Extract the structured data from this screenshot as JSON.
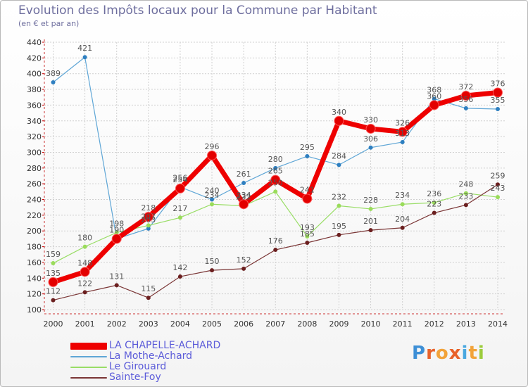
{
  "title": "Evolution des Impôts locaux pour la Commune par Habitant",
  "subtitle": "(en € et par an)",
  "logo": "Proxiti",
  "chart_data": {
    "type": "line",
    "title": "Evolution des Impôts locaux pour la Commune par Habitant",
    "ylabel": "(en € et par an)",
    "xlabel": "",
    "ylim": [
      100,
      440
    ],
    "yticks": [
      100,
      120,
      140,
      160,
      180,
      200,
      220,
      240,
      260,
      280,
      300,
      320,
      340,
      360,
      380,
      400,
      420,
      440
    ],
    "categories": [
      "2000",
      "2001",
      "2002",
      "2003",
      "2004",
      "2005",
      "2006",
      "2007",
      "2008",
      "2009",
      "2010",
      "2011",
      "2012",
      "2013",
      "2014"
    ],
    "grid": true,
    "legend_position": "bottom-left",
    "series": [
      {
        "name": "LA CHAPELLE-ACHARD",
        "color": "#ee0000",
        "width": 7,
        "values": [
          135,
          148,
          190,
          218,
          254,
          296,
          234,
          265,
          241,
          340,
          330,
          326,
          360,
          372,
          376
        ],
        "labels": [
          "135",
          "148",
          "190",
          "218",
          "254",
          "296",
          "234",
          "265",
          "241",
          "340",
          "330",
          "326",
          "360",
          "372",
          "376"
        ]
      },
      {
        "name": "La Mothe-Achard",
        "color": "#5fa6d6",
        "width": 1.2,
        "values": [
          389,
          421,
          190,
          203,
          256,
          240,
          261,
          280,
          295,
          284,
          306,
          313,
          368,
          356,
          355
        ],
        "labels": [
          "389",
          "421",
          "",
          "203",
          "256",
          "240",
          "261",
          "280",
          "295",
          "284",
          "306",
          "313",
          "368",
          "356",
          "355"
        ]
      },
      {
        "name": "Le Girouard",
        "color": "#99dd66",
        "width": 1.2,
        "values": [
          159,
          180,
          198,
          207,
          217,
          234,
          232,
          250,
          193,
          232,
          228,
          234,
          236,
          248,
          243
        ],
        "labels": [
          "159",
          "180",
          "198",
          "207",
          "217",
          "234",
          "232",
          "250",
          "193",
          "232",
          "228",
          "234",
          "236",
          "248",
          "243"
        ]
      },
      {
        "name": "Sainte-Foy",
        "color": "#7a3535",
        "width": 1.2,
        "values": [
          112,
          122,
          131,
          115,
          142,
          150,
          152,
          176,
          185,
          195,
          201,
          204,
          223,
          233,
          259
        ],
        "labels": [
          "112",
          "122",
          "131",
          "115",
          "142",
          "150",
          "152",
          "176",
          "185",
          "195",
          "201",
          "204",
          "223",
          "233",
          "259"
        ]
      }
    ]
  }
}
